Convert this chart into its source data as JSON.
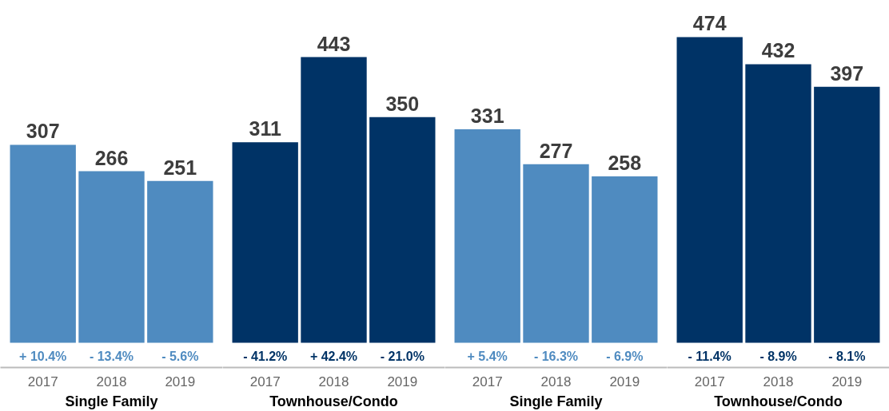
{
  "chart_data": [
    {
      "type": "bar",
      "categories": [
        "2017",
        "2018",
        "2019"
      ],
      "values": [
        307,
        266,
        251
      ],
      "color": "#4f8bc0",
      "xlabel": "Single Family",
      "data_labels": true,
      "annotations": [
        "+ 10.4%",
        "- 13.4%",
        "- 5.6%"
      ],
      "tick_labels": "x"
    },
    {
      "type": "bar",
      "categories": [
        "2017",
        "2018",
        "2019"
      ],
      "values": [
        311,
        443,
        350
      ],
      "color": "#003366",
      "xlabel": "Townhouse/Condo",
      "data_labels": true,
      "annotations": [
        "- 41.2%",
        "+ 42.4%",
        "- 21.0%"
      ],
      "tick_labels": "x"
    },
    {
      "type": "bar",
      "categories": [
        "2017",
        "2018",
        "2019"
      ],
      "values": [
        331,
        277,
        258
      ],
      "color": "#4f8bc0",
      "xlabel": "Single Family",
      "data_labels": true,
      "annotations": [
        "+ 5.4%",
        "- 16.3%",
        "- 6.9%"
      ],
      "tick_labels": "x"
    },
    {
      "type": "bar",
      "categories": [
        "2017",
        "2018",
        "2019"
      ],
      "values": [
        474,
        432,
        397
      ],
      "color": "#003366",
      "xlabel": "Townhouse/Condo",
      "data_labels": true,
      "annotations": [
        "- 11.4%",
        "- 8.9%",
        "- 8.1%"
      ],
      "tick_labels": "x"
    }
  ]
}
